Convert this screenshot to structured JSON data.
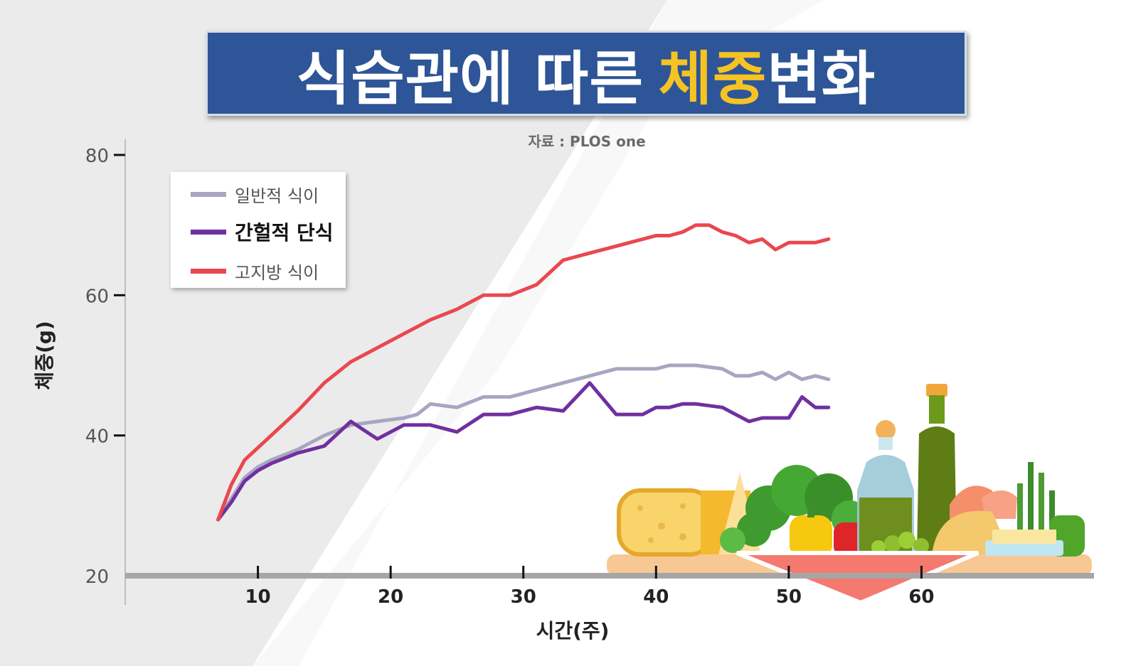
{
  "title": {
    "main": "식습관에 따른",
    "highlight": "체중",
    "tail": "변화"
  },
  "source_label": "자료 : PLOS one",
  "colors": {
    "title_bg": "#2d5597",
    "highlight": "#f6c324",
    "normal": "#a7a6c2",
    "intermittent": "#7030a0",
    "highfat": "#e9484f"
  },
  "chart_data": {
    "type": "line",
    "xlabel": "시간(주)",
    "ylabel": "체중(g)",
    "xlim": [
      0,
      73
    ],
    "ylim": [
      20,
      80
    ],
    "x_ticks": [
      10,
      20,
      30,
      40,
      50,
      60
    ],
    "y_ticks": [
      20,
      40,
      60,
      80
    ],
    "legend_position": "top-left",
    "series": [
      {
        "name": "일반적 식이",
        "color": "#a7a6c2",
        "x": [
          7,
          8,
          9,
          10,
          11,
          13,
          15,
          17,
          19,
          21,
          22,
          23,
          25,
          27,
          29,
          31,
          33,
          35,
          37,
          39,
          40,
          41,
          42,
          43,
          45,
          46,
          47,
          48,
          49,
          50,
          51,
          52,
          53
        ],
        "y": [
          28,
          31,
          34,
          35.5,
          36.5,
          38,
          40,
          41.5,
          42,
          42.5,
          43,
          44.5,
          44,
          45.5,
          45.5,
          46.5,
          47.5,
          48.5,
          49.5,
          49.5,
          49.5,
          50,
          50,
          50,
          49.5,
          48.5,
          48.5,
          49,
          48,
          49,
          48,
          48.5,
          48
        ]
      },
      {
        "name": "간헐적 단식",
        "color": "#7030a0",
        "x": [
          7,
          8,
          9,
          10,
          11,
          13,
          15,
          17,
          19,
          21,
          23,
          25,
          27,
          29,
          31,
          33,
          35,
          37,
          39,
          40,
          41,
          42,
          43,
          45,
          46,
          47,
          48,
          49,
          50,
          51,
          52,
          53
        ],
        "y": [
          28,
          30.5,
          33.5,
          35,
          36,
          37.5,
          38.5,
          42,
          39.5,
          41.5,
          41.5,
          40.5,
          43,
          43,
          44,
          43.5,
          47.5,
          43,
          43,
          44,
          44,
          44.5,
          44.5,
          44,
          43,
          42,
          42.5,
          42.5,
          42.5,
          45.5,
          44,
          44
        ]
      },
      {
        "name": "고지방 식이",
        "color": "#e9484f",
        "x": [
          7,
          8,
          9,
          11,
          13,
          15,
          17,
          19,
          21,
          23,
          25,
          27,
          29,
          31,
          33,
          35,
          37,
          39,
          40,
          41,
          42,
          43,
          44,
          45,
          46,
          47,
          48,
          49,
          50,
          51,
          52,
          53
        ],
        "y": [
          28,
          33,
          36.5,
          40,
          43.5,
          47.5,
          50.5,
          52.5,
          54.5,
          56.5,
          58,
          60,
          60,
          61.5,
          65,
          66,
          67,
          68,
          68.5,
          68.5,
          69,
          70,
          70,
          69,
          68.5,
          67.5,
          68,
          66.5,
          67.5,
          67.5,
          67.5,
          68
        ]
      }
    ]
  }
}
